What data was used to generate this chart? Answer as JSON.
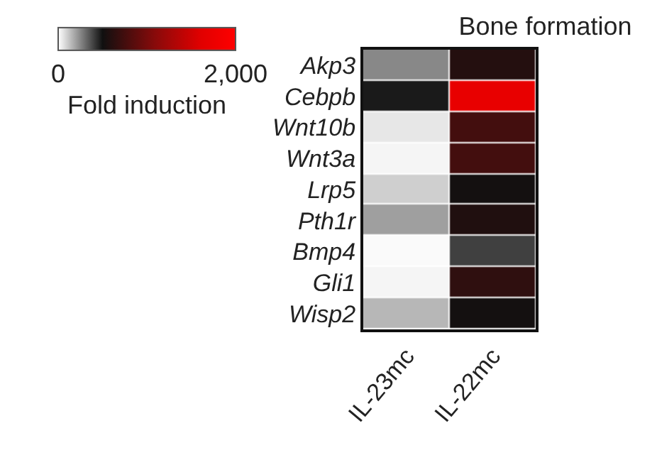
{
  "chart_data": {
    "type": "heatmap",
    "title": "Bone formation",
    "clabel": "Fold induction",
    "categories": [
      "IL-23mc",
      "IL-22mc"
    ],
    "y_categories": [
      "Akp3",
      "Cebpb",
      "Wnt10b",
      "Wnt3a",
      "Lrp5",
      "Pth1r",
      "Bmp4",
      "Gli1",
      "Wisp2"
    ],
    "cells": [
      [
        250,
        600
      ],
      [
        480,
        1700
      ],
      [
        50,
        750
      ],
      [
        20,
        750
      ],
      [
        100,
        520
      ],
      [
        200,
        580
      ],
      [
        10,
        400
      ],
      [
        20,
        650
      ],
      [
        150,
        520
      ]
    ],
    "clim": [
      0,
      2000
    ],
    "cticks": [
      0,
      {
        "value": 2000,
        "label": "2,000"
      }
    ]
  }
}
